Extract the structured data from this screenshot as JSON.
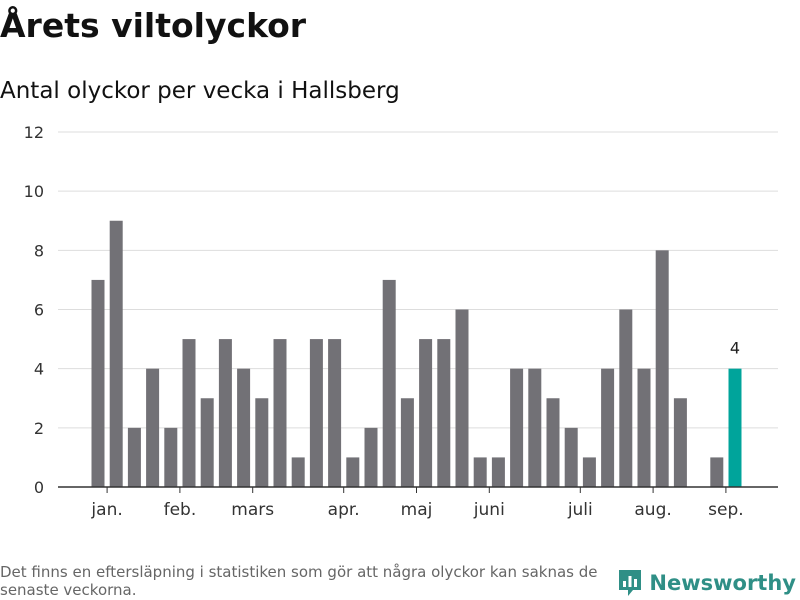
{
  "title": "Årets viltolyckor",
  "subtitle": "Antal olyckor per vecka i Hallsberg",
  "footer": "Det finns en eftersläpning i statistiken som gör att några olyckor kan saknas de senaste veckorna.",
  "brand": {
    "name": "Newsworthy",
    "color": "#2f8f86",
    "icon": "bar-chart-logo-icon"
  },
  "chart_data": {
    "type": "bar",
    "ylim": [
      0,
      12
    ],
    "yticks": [
      0,
      2,
      4,
      6,
      8,
      10,
      12
    ],
    "x": [
      1,
      2,
      3,
      4,
      5,
      6,
      7,
      8,
      9,
      10,
      11,
      12,
      13,
      14,
      15,
      16,
      17,
      18,
      19,
      20,
      21,
      22,
      23,
      24,
      25,
      26,
      27,
      28,
      29,
      30,
      31,
      32,
      33,
      34,
      35,
      36
    ],
    "values": [
      7,
      9,
      2,
      4,
      2,
      5,
      3,
      5,
      4,
      3,
      5,
      1,
      5,
      5,
      1,
      2,
      7,
      3,
      5,
      5,
      6,
      1,
      1,
      4,
      4,
      3,
      2,
      1,
      4,
      6,
      4,
      8,
      3,
      0,
      1,
      4
    ],
    "highlight_index": 35,
    "highlight_label": "4",
    "colors": {
      "bar": "#727176",
      "highlight": "#00a49b",
      "grid": "#dddddd"
    },
    "month_labels": [
      {
        "label": "jan.",
        "x": 1.5
      },
      {
        "label": "feb.",
        "x": 5.5
      },
      {
        "label": "mars",
        "x": 9.5
      },
      {
        "label": "apr.",
        "x": 14.5
      },
      {
        "label": "maj",
        "x": 18.5
      },
      {
        "label": "juni",
        "x": 22.5
      },
      {
        "label": "juli",
        "x": 27.5
      },
      {
        "label": "aug.",
        "x": 31.5
      },
      {
        "label": "sep.",
        "x": 35.5
      }
    ]
  }
}
